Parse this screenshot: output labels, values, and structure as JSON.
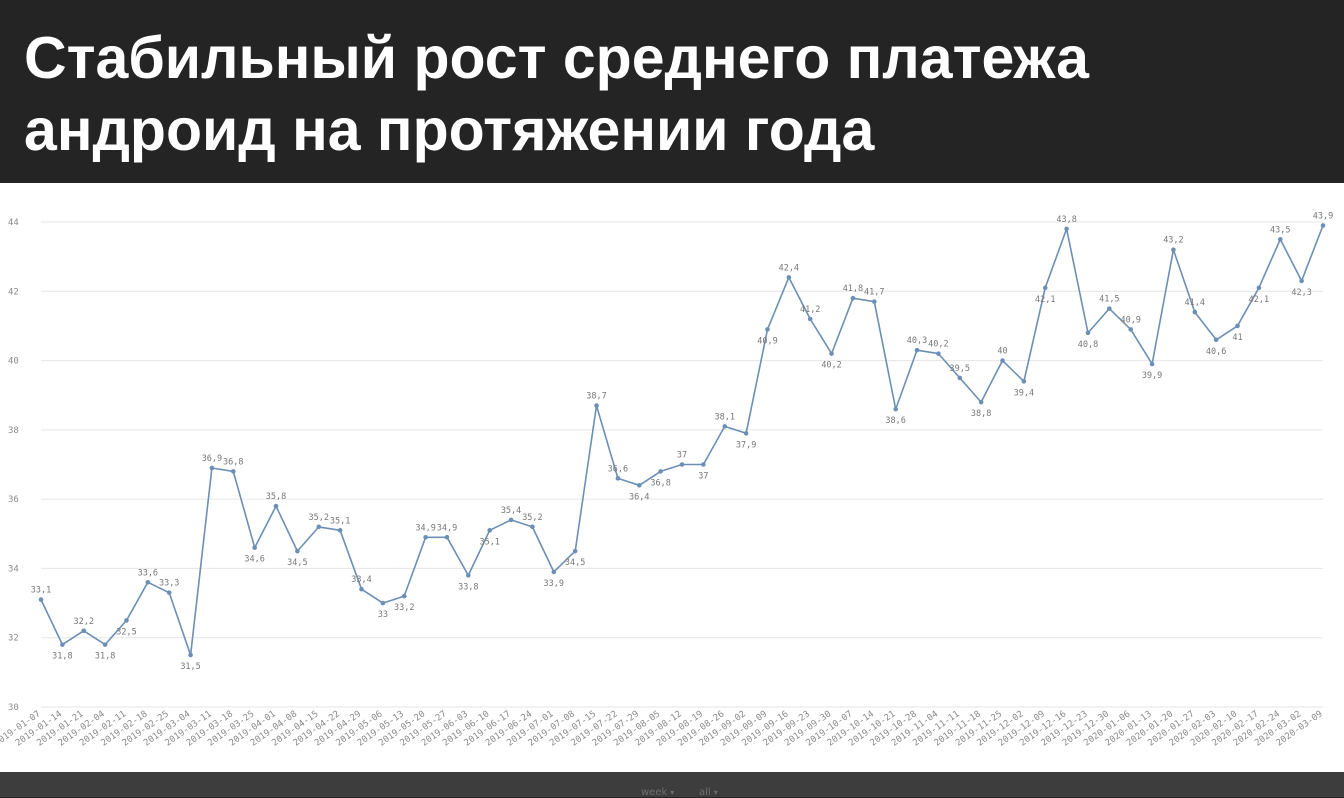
{
  "header": {
    "title": "Стабильный рост среднего платежа андроид на протяжении года"
  },
  "footer": {
    "controls": [
      {
        "label": "week",
        "icon": "chevron-down-icon"
      },
      {
        "label": "all",
        "icon": "chevron-down-icon"
      }
    ]
  },
  "colors": {
    "header_bg": "#242424",
    "line": "#6b8fb6",
    "grid": "#e6e6e6"
  },
  "chart_data": {
    "type": "line",
    "title": "",
    "xlabel": "",
    "ylabel": "",
    "ylim": [
      30,
      44
    ],
    "yticks": [
      30,
      32,
      34,
      36,
      38,
      40,
      42,
      44
    ],
    "grid": true,
    "x": [
      "2019-01-07",
      "2019-01-14",
      "2019-01-21",
      "2019-02-04",
      "2019-02-11",
      "2019-02-18",
      "2019-02-25",
      "2019-03-04",
      "2019-03-11",
      "2019-03-18",
      "2019-03-25",
      "2019-04-01",
      "2019-04-08",
      "2019-04-15",
      "2019-04-22",
      "2019-04-29",
      "2019-05-06",
      "2019-05-13",
      "2019-05-20",
      "2019-05-27",
      "2019-06-03",
      "2019-06-10",
      "2019-06-17",
      "2019-06-24",
      "2019-07-01",
      "2019-07-08",
      "2019-07-15",
      "2019-07-22",
      "2019-07-29",
      "2019-08-05",
      "2019-08-12",
      "2019-08-19",
      "2019-08-26",
      "2019-09-02",
      "2019-09-09",
      "2019-09-16",
      "2019-09-23",
      "2019-09-30",
      "2019-10-07",
      "2019-10-14",
      "2019-10-21",
      "2019-10-28",
      "2019-11-04",
      "2019-11-11",
      "2019-11-18",
      "2019-11-25",
      "2019-12-02",
      "2019-12-09",
      "2019-12-16",
      "2019-12-23",
      "2019-12-30",
      "2020-01-06",
      "2020-01-13",
      "2020-01-20",
      "2020-01-27",
      "2020-02-03",
      "2020-02-10",
      "2020-02-17",
      "2020-02-24",
      "2020-03-02",
      "2020-03-09"
    ],
    "series": [
      {
        "values": [
          33.1,
          31.8,
          32.2,
          31.8,
          32.5,
          33.6,
          33.3,
          31.5,
          36.9,
          36.8,
          34.6,
          35.8,
          34.5,
          35.2,
          35.1,
          33.4,
          33,
          33.2,
          34.9,
          34.9,
          33.8,
          35.1,
          35.4,
          35.2,
          33.9,
          34.5,
          38.7,
          36.6,
          36.4,
          36.8,
          37,
          37,
          38.1,
          37.9,
          40.9,
          42.4,
          41.2,
          40.2,
          41.8,
          41.7,
          38.6,
          40.3,
          40.2,
          39.5,
          38.8,
          40,
          39.4,
          42.1,
          43.8,
          40.8,
          41.5,
          40.9,
          39.9,
          43.2,
          41.4,
          40.6,
          41,
          42.1,
          43.5,
          42.3,
          43.9
        ],
        "labels": [
          "33,1",
          "31,8",
          "32,2",
          "31,8",
          "32,5",
          "33,6",
          "33,3",
          "31,5",
          "36,9",
          "36,8",
          "34,6",
          "35,8",
          "34,5",
          "35,2",
          "35,1",
          "33,4",
          "33",
          "33,2",
          "34,9",
          "34,9",
          "33,8",
          "35,1",
          "35,4",
          "35,2",
          "33,9",
          "34,5",
          "38,7",
          "36,6",
          "36,4",
          "36,8",
          "37",
          "37",
          "38,1",
          "37,9",
          "40,9",
          "42,4",
          "41,2",
          "40,2",
          "41,8",
          "41,7",
          "38,6",
          "40,3",
          "40,2",
          "39,5",
          "38,8",
          "40",
          "39,4",
          "42,1",
          "43,8",
          "40,8",
          "41,5",
          "40,9",
          "39,9",
          "43,2",
          "41,4",
          "40,6",
          "41",
          "42,1",
          "43,5",
          "42,3",
          "43,9"
        ],
        "color": "#6b8fb6"
      }
    ]
  }
}
